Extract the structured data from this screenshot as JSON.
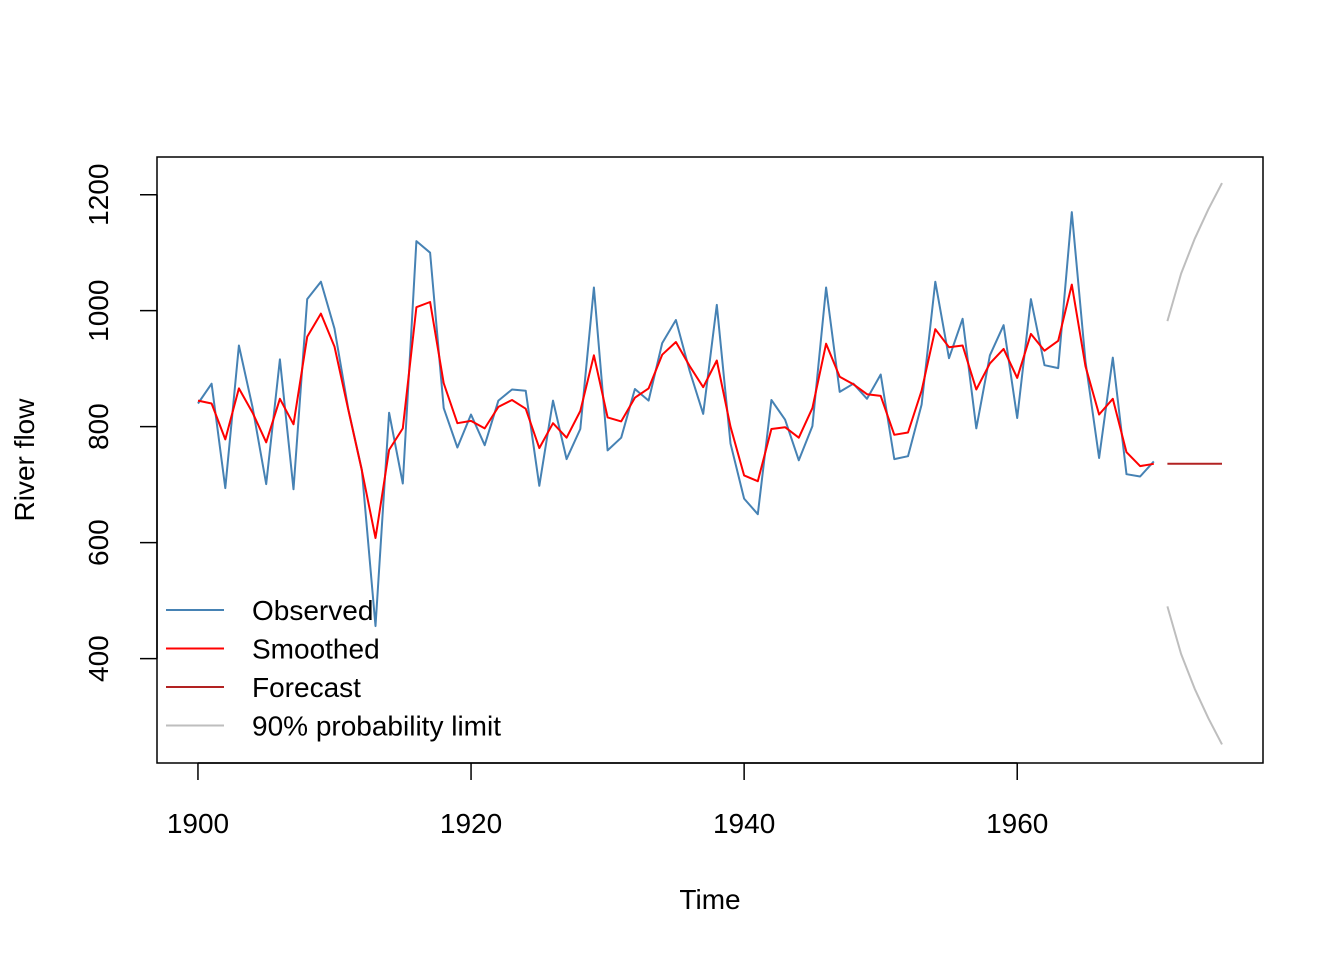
{
  "chart_data": {
    "type": "line",
    "title": "",
    "xlabel": "Time",
    "ylabel": "River flow",
    "xlim": [
      1897,
      1978
    ],
    "ylim": [
      220,
      1265
    ],
    "x_ticks": [
      1900,
      1920,
      1940,
      1960
    ],
    "y_ticks": [
      400,
      600,
      800,
      1000,
      1200
    ],
    "grid": false,
    "legend_position": "bottom-left",
    "series": [
      {
        "name": "Observed",
        "color": "#4682B4",
        "x": [
          1900,
          1901,
          1902,
          1903,
          1904,
          1905,
          1906,
          1907,
          1908,
          1909,
          1910,
          1911,
          1912,
          1913,
          1914,
          1915,
          1916,
          1917,
          1918,
          1919,
          1920,
          1921,
          1922,
          1923,
          1924,
          1925,
          1926,
          1927,
          1928,
          1929,
          1930,
          1931,
          1932,
          1933,
          1934,
          1935,
          1936,
          1937,
          1938,
          1939,
          1940,
          1941,
          1942,
          1943,
          1944,
          1945,
          1946,
          1947,
          1948,
          1949,
          1950,
          1951,
          1952,
          1953,
          1954,
          1955,
          1956,
          1957,
          1958,
          1959,
          1960,
          1961,
          1962,
          1963,
          1964,
          1965,
          1966,
          1967,
          1968,
          1969,
          1970
        ],
        "values": [
          840,
          874,
          694,
          940,
          833,
          701,
          916,
          692,
          1020,
          1050,
          969,
          831,
          726,
          456,
          824,
          702,
          1120,
          1100,
          832,
          764,
          821,
          768,
          845,
          864,
          862,
          698,
          845,
          744,
          796,
          1040,
          759,
          781,
          865,
          845,
          944,
          984,
          897,
          822,
          1010,
          771,
          676,
          649,
          846,
          812,
          742,
          801,
          1040,
          860,
          874,
          848,
          890,
          744,
          749,
          838,
          1050,
          918,
          986,
          797,
          923,
          975,
          815,
          1020,
          906,
          901,
          1170,
          912,
          746,
          919,
          718,
          714,
          740
        ]
      },
      {
        "name": "Smoothed",
        "color": "#FF0000",
        "x": [
          1900,
          1901,
          1902,
          1903,
          1904,
          1905,
          1906,
          1907,
          1908,
          1909,
          1910,
          1911,
          1912,
          1913,
          1914,
          1915,
          1916,
          1917,
          1918,
          1919,
          1920,
          1921,
          1922,
          1923,
          1924,
          1925,
          1926,
          1927,
          1928,
          1929,
          1930,
          1931,
          1932,
          1933,
          1934,
          1935,
          1936,
          1937,
          1938,
          1939,
          1940,
          1941,
          1942,
          1943,
          1944,
          1945,
          1946,
          1947,
          1948,
          1949,
          1950,
          1951,
          1952,
          1953,
          1954,
          1955,
          1956,
          1957,
          1958,
          1959,
          1960,
          1961,
          1962,
          1963,
          1964,
          1965,
          1966,
          1967,
          1968,
          1969,
          1970
        ],
        "values": [
          845,
          840,
          778,
          866,
          824,
          773,
          848,
          804,
          955,
          995,
          938,
          830,
          725,
          608,
          760,
          797,
          1006,
          1015,
          875,
          806,
          810,
          797,
          834,
          846,
          831,
          763,
          806,
          781,
          827,
          923,
          816,
          809,
          850,
          866,
          924,
          946,
          905,
          868,
          914,
          800,
          716,
          706,
          796,
          799,
          781,
          832,
          943,
          886,
          873,
          856,
          853,
          786,
          790,
          862,
          968,
          937,
          940,
          864,
          909,
          934,
          884,
          960,
          931,
          948,
          1045,
          904,
          821,
          848,
          756,
          732,
          736
        ]
      },
      {
        "name": "Forecast",
        "color": "#B22222",
        "x": [
          1971,
          1972,
          1973,
          1974,
          1975
        ],
        "values": [
          736,
          736,
          736,
          736,
          736
        ]
      },
      {
        "name": "90% probability limit",
        "color": "#BEBEBE",
        "bands": [
          {
            "x": [
              1971,
              1972,
              1973,
              1974,
              1975
            ],
            "values": [
              982,
              1064,
              1124,
              1175,
              1220
            ]
          },
          {
            "x": [
              1971,
              1972,
              1973,
              1974,
              1975
            ],
            "values": [
              490,
              408,
              348,
              297,
              252
            ]
          }
        ]
      }
    ]
  }
}
